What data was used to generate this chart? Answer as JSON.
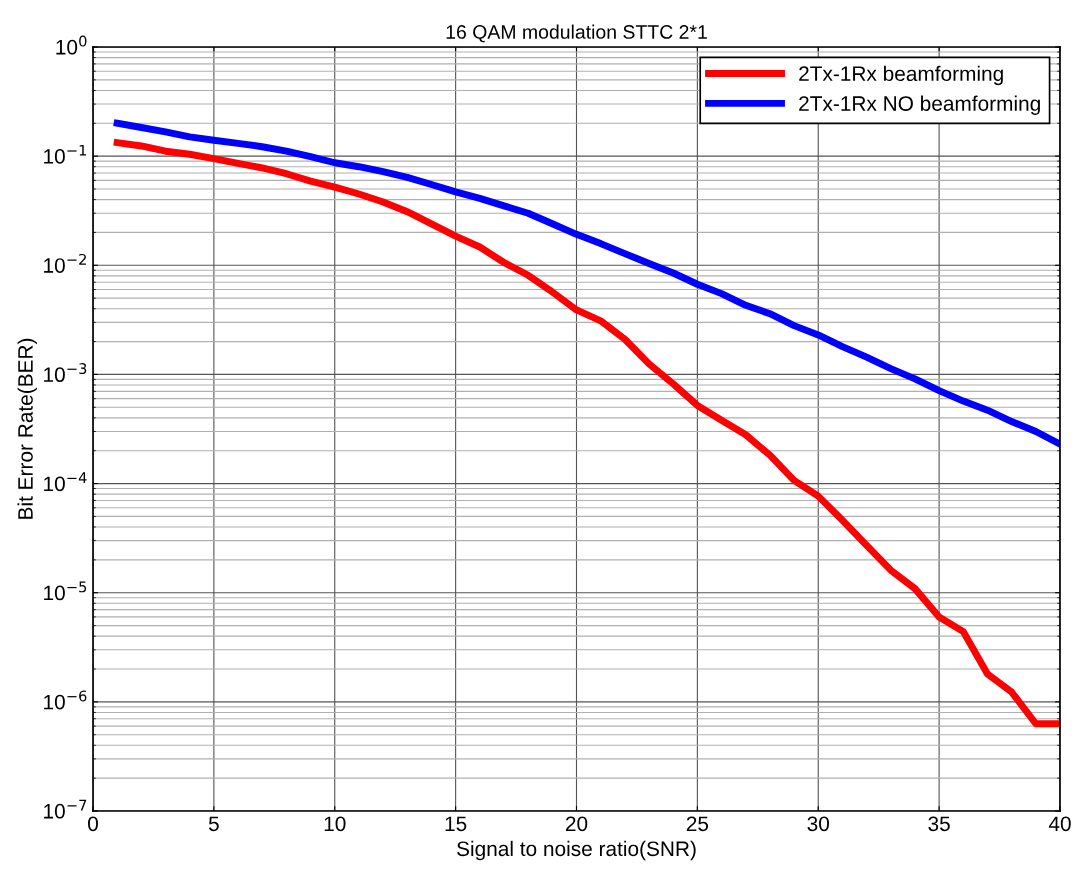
{
  "chart_data": {
    "type": "line",
    "title": "16 QAM modulation STTC 2*1",
    "xlabel": "Signal to noise ratio(SNR)",
    "ylabel": "Bit Error Rate(BER)",
    "x": [
      1,
      2,
      3,
      4,
      5,
      6,
      7,
      8,
      9,
      10,
      11,
      12,
      13,
      14,
      15,
      16,
      17,
      18,
      19,
      20,
      21,
      22,
      23,
      24,
      25,
      26,
      27,
      28,
      29,
      30,
      31,
      32,
      33,
      34,
      35,
      36,
      37,
      38,
      39,
      40
    ],
    "series": [
      {
        "name": "2Tx-1Rx beamforming",
        "color": "#ff0000",
        "values": [
          0.133,
          0.124,
          0.111,
          0.104,
          0.095,
          0.086,
          0.078,
          0.069,
          0.059,
          0.052,
          0.045,
          0.038,
          0.031,
          0.024,
          0.0185,
          0.0147,
          0.0106,
          0.0081,
          0.0057,
          0.0039,
          0.0031,
          0.0021,
          0.00125,
          0.00082,
          0.00052,
          0.00038,
          0.00028,
          0.000182,
          0.000107,
          7.67e-05,
          4.62e-05,
          2.72e-05,
          1.61e-05,
          1.09e-05,
          6e-06,
          4.4e-06,
          1.8e-06,
          1.23e-06,
          6.3e-07,
          6.3e-07
        ]
      },
      {
        "name": "2Tx-1Rx NO beamforming",
        "color": "#0000ff",
        "values": [
          0.2,
          0.183,
          0.167,
          0.15,
          0.14,
          0.131,
          0.122,
          0.111,
          0.099,
          0.087,
          0.08,
          0.072,
          0.064,
          0.055,
          0.047,
          0.041,
          0.035,
          0.03,
          0.024,
          0.0192,
          0.0158,
          0.0128,
          0.0104,
          0.0085,
          0.0067,
          0.0055,
          0.0043,
          0.0036,
          0.0028,
          0.0023,
          0.0018,
          0.00144,
          0.00113,
          0.00091,
          0.00071,
          0.00057,
          0.00047,
          0.00037,
          0.0003,
          0.00023
        ]
      }
    ],
    "log": "y",
    "xlim": [
      0,
      40
    ],
    "xticks": [
      0,
      5,
      10,
      15,
      20,
      25,
      30,
      35,
      40
    ],
    "ylim": [
      1e-07,
      1
    ],
    "yticks": [
      {
        "value": 1e-07,
        "label": "10$^{−7}$"
      },
      {
        "value": 1e-06,
        "label": "10$^{−6}$"
      },
      {
        "value": 1e-05,
        "label": "10$^{−5}$"
      },
      {
        "value": 0.0001,
        "label": "10$^{−4}$"
      },
      {
        "value": 0.001,
        "label": "10$^{−3}$"
      },
      {
        "value": 0.01,
        "label": "10$^{−2}$"
      },
      {
        "value": 0.1,
        "label": "10$^{−1}$"
      },
      {
        "value": 1,
        "label": "10$^{0}$"
      }
    ],
    "grid": true,
    "legend": "top right",
    "marker": "none",
    "line_style": "solid"
  }
}
